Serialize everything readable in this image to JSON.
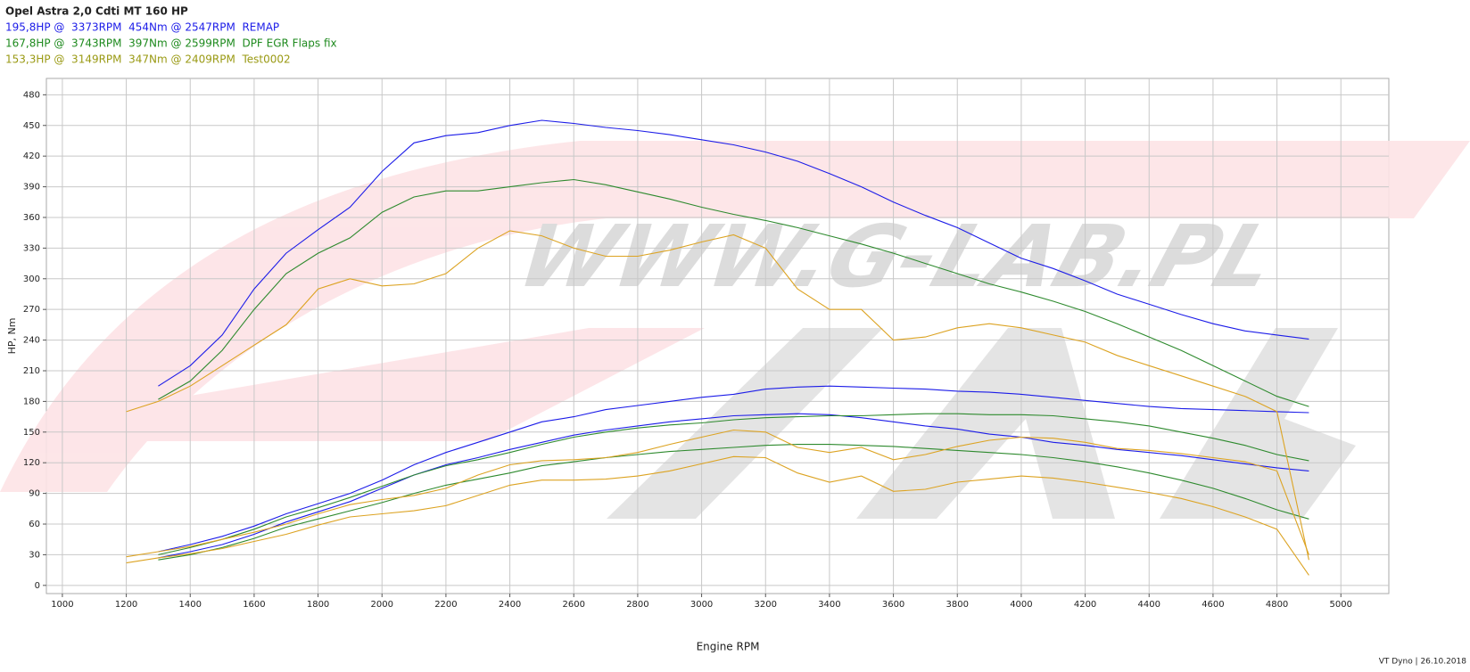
{
  "chart_data": {
    "type": "line",
    "title": "Opel Astra 2,0 Cdti MT 160 HP",
    "x_label": "Engine RPM",
    "y_label": "HP, Nm",
    "xlim": [
      950,
      5150
    ],
    "ylim": [
      -8,
      496
    ],
    "xticks": [
      1000,
      1200,
      1400,
      1600,
      1800,
      2000,
      2200,
      2400,
      2600,
      2800,
      3000,
      3200,
      3400,
      3600,
      3800,
      4000,
      4200,
      4400,
      4600,
      4800,
      5000
    ],
    "yticks": [
      0,
      30,
      60,
      90,
      120,
      150,
      180,
      210,
      240,
      270,
      300,
      330,
      360,
      390,
      420,
      450,
      480
    ],
    "grid": true,
    "x": [
      1200,
      1300,
      1400,
      1500,
      1600,
      1700,
      1800,
      1900,
      2000,
      2100,
      2200,
      2300,
      2400,
      2500,
      2600,
      2700,
      2800,
      2900,
      3000,
      3100,
      3200,
      3300,
      3400,
      3500,
      3600,
      3700,
      3800,
      3900,
      4000,
      4100,
      4200,
      4300,
      4400,
      4500,
      4600,
      4700,
      4800,
      4900
    ],
    "runs": [
      {
        "name": "195,8HP @  3373RPM  454Nm @ 2547RPM  REMAP",
        "color": "#1c1ce8",
        "label_color": "#1c1ce8",
        "curves": [
          [
            null,
            195,
            215,
            245,
            290,
            325,
            348,
            370,
            405,
            433,
            440,
            443,
            450,
            455,
            452,
            448,
            445,
            441,
            436,
            431,
            424,
            415,
            403,
            390,
            375,
            362,
            350,
            335,
            320,
            310,
            298,
            285,
            275,
            265,
            256,
            249,
            245,
            241
          ],
          [
            null,
            33,
            40,
            48,
            58,
            70,
            80,
            90,
            103,
            118,
            130,
            140,
            150,
            160,
            165,
            172,
            176,
            180,
            184,
            187,
            192,
            194,
            195,
            194,
            193,
            192,
            190,
            189,
            187,
            184,
            181,
            178,
            175,
            173,
            172,
            171,
            170,
            169
          ],
          [
            null,
            27,
            33,
            40,
            50,
            62,
            72,
            82,
            95,
            108,
            118,
            125,
            133,
            140,
            147,
            152,
            156,
            160,
            163,
            166,
            167,
            168,
            167,
            164,
            160,
            156,
            153,
            148,
            145,
            140,
            137,
            133,
            130,
            127,
            123,
            119,
            115,
            112
          ]
        ]
      },
      {
        "name": "167,8HP @  3743RPM  397Nm @ 2599RPM  DPF EGR Flaps fix",
        "color": "#2e8a2e",
        "label_color": "#1e8a1e",
        "curves": [
          [
            null,
            182,
            200,
            230,
            270,
            305,
            325,
            340,
            365,
            380,
            386,
            386,
            390,
            394,
            397,
            392,
            385,
            378,
            370,
            363,
            357,
            350,
            342,
            334,
            325,
            315,
            305,
            295,
            287,
            278,
            268,
            256,
            243,
            230,
            215,
            200,
            185,
            175
          ],
          [
            null,
            30,
            37,
            45,
            55,
            67,
            76,
            86,
            97,
            108,
            117,
            123,
            130,
            138,
            145,
            150,
            154,
            157,
            159,
            162,
            164,
            165,
            166,
            166,
            167,
            168,
            168,
            167,
            167,
            166,
            163,
            160,
            156,
            150,
            144,
            137,
            128,
            122
          ],
          [
            null,
            25,
            30,
            37,
            46,
            57,
            65,
            73,
            81,
            90,
            98,
            104,
            110,
            117,
            121,
            125,
            128,
            131,
            133,
            135,
            137,
            138,
            138,
            137,
            136,
            134,
            132,
            130,
            128,
            125,
            121,
            116,
            110,
            103,
            95,
            85,
            74,
            65
          ]
        ]
      },
      {
        "name": "153,3HP @  3149RPM  347Nm @ 2409RPM  Test0002",
        "color": "#dca322",
        "label_color": "#9a9a14",
        "curves": [
          [
            170,
            180,
            195,
            215,
            235,
            255,
            290,
            300,
            293,
            295,
            305,
            330,
            347,
            342,
            330,
            322,
            322,
            328,
            336,
            343,
            330,
            290,
            270,
            270,
            240,
            243,
            252,
            256,
            252,
            245,
            238,
            225,
            215,
            205,
            195,
            185,
            170,
            25
          ],
          [
            28,
            33,
            38,
            45,
            52,
            60,
            70,
            79,
            84,
            88,
            95,
            108,
            118,
            122,
            123,
            125,
            130,
            138,
            145,
            152,
            150,
            135,
            130,
            135,
            123,
            128,
            136,
            142,
            145,
            144,
            140,
            134,
            132,
            129,
            125,
            121,
            112,
            30
          ],
          [
            22,
            27,
            31,
            36,
            43,
            50,
            59,
            67,
            70,
            73,
            78,
            88,
            98,
            103,
            103,
            104,
            107,
            112,
            119,
            126,
            125,
            110,
            101,
            107,
            92,
            94,
            101,
            104,
            107,
            105,
            101,
            96,
            91,
            85,
            77,
            67,
            55,
            10
          ]
        ]
      }
    ]
  },
  "watermark": "WWW.G-LAB.PL",
  "footer": "VT Dyno | 26.10.2018"
}
